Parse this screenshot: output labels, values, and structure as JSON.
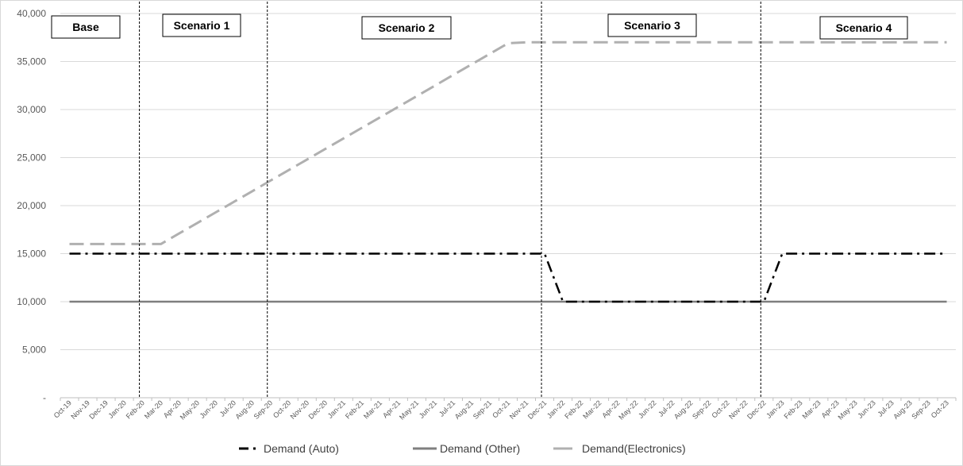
{
  "chart_data": {
    "type": "line",
    "title": "",
    "xlabel": "",
    "ylabel": "",
    "ylim": [
      0,
      40000
    ],
    "ytick_labels": [
      "-",
      "5,000",
      "10,000",
      "15,000",
      "20,000",
      "25,000",
      "30,000",
      "35,000",
      "40,000"
    ],
    "categories": [
      "Oct-19",
      "Nov-19",
      "Dec-19",
      "Jan-20",
      "Feb-20",
      "Mar-20",
      "Apr-20",
      "May-20",
      "Jun-20",
      "Jul-20",
      "Aug-20",
      "Sep-20",
      "Oct-20",
      "Nov-20",
      "Dec-20",
      "Jan-21",
      "Feb-21",
      "Mar-21",
      "Apr-21",
      "May-21",
      "Jun-21",
      "Jul-21",
      "Aug-21",
      "Sep-21",
      "Oct-21",
      "Nov-21",
      "Dec-21",
      "Jan-22",
      "Feb-22",
      "Mar-22",
      "Apr-22",
      "May-22",
      "Jun-22",
      "Jul-22",
      "Aug-22",
      "Sep-22",
      "Oct-22",
      "Nov-22",
      "Dec-22",
      "Jan-23",
      "Feb-23",
      "Mar-23",
      "Apr-23",
      "May-23",
      "Jun-23",
      "Jul-23",
      "Aug-23",
      "Sep-23",
      "Oct-23"
    ],
    "grid": true,
    "legend_position": "bottom",
    "series": [
      {
        "name": "Demand (Auto)",
        "color": "#000000",
        "dash": "dash-dot",
        "values": [
          15000,
          15000,
          15000,
          15000,
          15000,
          15000,
          15000,
          15000,
          15000,
          15000,
          15000,
          15000,
          15000,
          15000,
          15000,
          15000,
          15000,
          15000,
          15000,
          15000,
          15000,
          15000,
          15000,
          15000,
          15000,
          15000,
          15000,
          10000,
          10000,
          10000,
          10000,
          10000,
          10000,
          10000,
          10000,
          10000,
          10000,
          10000,
          10000,
          15000,
          15000,
          15000,
          15000,
          15000,
          15000,
          15000,
          15000,
          15000,
          15000
        ]
      },
      {
        "name": "Demand (Other)",
        "color": "#7f7f7f",
        "dash": "solid",
        "values": [
          10000,
          10000,
          10000,
          10000,
          10000,
          10000,
          10000,
          10000,
          10000,
          10000,
          10000,
          10000,
          10000,
          10000,
          10000,
          10000,
          10000,
          10000,
          10000,
          10000,
          10000,
          10000,
          10000,
          10000,
          10000,
          10000,
          10000,
          10000,
          10000,
          10000,
          10000,
          10000,
          10000,
          10000,
          10000,
          10000,
          10000,
          10000,
          10000,
          10000,
          10000,
          10000,
          10000,
          10000,
          10000,
          10000,
          10000,
          10000,
          10000
        ]
      },
      {
        "name": "Demand(Electronics)",
        "color": "#b0b0b0",
        "dash": "dashed",
        "values": [
          16000,
          16000,
          16000,
          16000,
          16000,
          16000,
          17100,
          18200,
          19300,
          20400,
          21500,
          22600,
          23700,
          24800,
          25900,
          27000,
          28100,
          29200,
          30300,
          31400,
          32500,
          33600,
          34700,
          35800,
          36900,
          37000,
          37000,
          37000,
          37000,
          37000,
          37000,
          37000,
          37000,
          37000,
          37000,
          37000,
          37000,
          37000,
          37000,
          37000,
          37000,
          37000,
          37000,
          37000,
          37000,
          37000,
          37000,
          37000,
          37000
        ]
      }
    ],
    "divider_categories": [
      "Feb-20",
      "Sep-20",
      "Dec-21",
      "Dec-22"
    ],
    "scenarios": [
      "Base",
      "Scenario 1",
      "Scenario 2",
      "Scenario 3",
      "Scenario 4"
    ]
  }
}
